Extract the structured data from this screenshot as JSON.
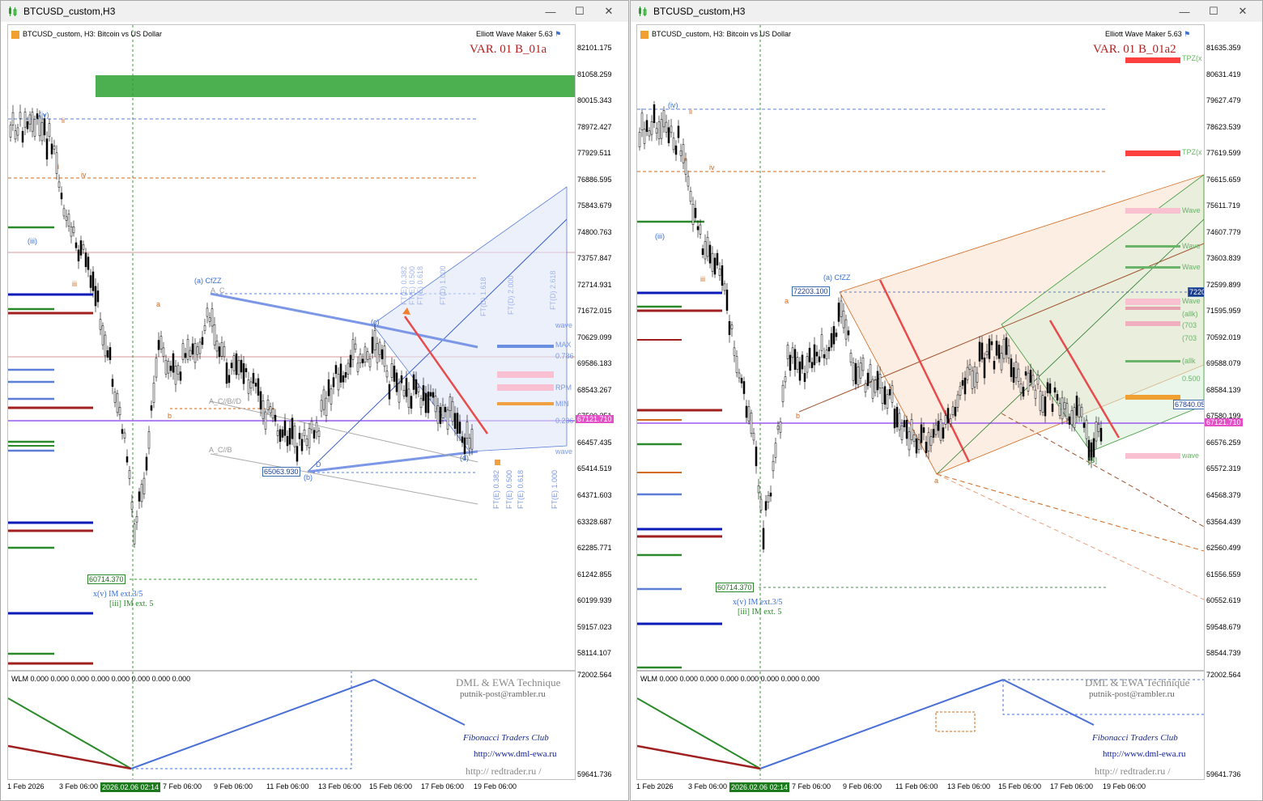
{
  "windows": [
    {
      "title": "BTCUSD_custom,H3",
      "symbol_info": "BTCUSD_custom, H3:  Bitcoin vs US Dollar",
      "indicator": "Elliott Wave Maker 5.63",
      "variant": "VAR. 01 B_01a",
      "price_scale": [
        "82101.175",
        "81058.259",
        "80015.343",
        "78972.427",
        "77929.511",
        "76886.595",
        "75843.679",
        "74800.763",
        "73757.847",
        "72714.931",
        "71672.015",
        "70629.099",
        "69586.183",
        "68543.267",
        "67500.351",
        "66457.435",
        "65414.519",
        "64371.603",
        "63328.687",
        "62285.771",
        "61242.855",
        "60199.939",
        "59157.023",
        "58114.107"
      ],
      "current_price": "67121.710",
      "low_label": "60714.370",
      "b_label": "65063.930",
      "wave_labels": {
        "cfzz": "(a) CfZZ",
        "ac": "A_C",
        "acb": "A_C//B//D",
        "acb2": "A_C//B",
        "b": "(b)",
        "c": "(c)",
        "d": "(d)",
        "iv": "(iv)",
        "iii": "(iii)",
        "ii": "ii",
        "i": "i",
        "iv2": "iv",
        "iii2": "iii",
        "a": "a",
        "b2": "b",
        "D": "D"
      },
      "notes": [
        "x(v) IM ext.3/5",
        "[iii] IM ext. 5"
      ],
      "ft_labels": [
        "FT(E) 0.382",
        "FT(E) 0.500",
        "FT(E) 0.618",
        "FT(E) 1.000"
      ],
      "fibo_top": [
        "FT(E) 0.382",
        "FT(E) 0.500",
        "FT(E) 0.618",
        "FT(D) 1.000",
        "FT(D) 1.618",
        "FT(D) 2.000",
        "FT(D) 2.618"
      ],
      "right_tags": [
        "wave",
        "MAX",
        "0.786",
        "RPM",
        "MIN",
        "0.236",
        "wave"
      ],
      "wlm": "WLM 0.000 0.000 0.000 0.000 0.000 0.000 0.000 0.000",
      "sub_scale": [
        "72002.564",
        "59641.736"
      ],
      "time_axis": [
        "1 Feb 2026",
        "3 Feb 06:00",
        "7 Feb 06:00",
        "9 Feb 06:00",
        "11 Feb 06:00",
        "13 Feb 06:00",
        "15 Feb 06:00",
        "17 Feb 06:00",
        "19 Feb 06:00"
      ],
      "time_badge": "2026.02.06 02:14"
    },
    {
      "title": "BTCUSD_custom,H3",
      "symbol_info": "BTCUSD_custom, H3:  Bitcoin vs US Dollar",
      "indicator": "Elliott Wave Maker 5.63",
      "variant": "VAR. 01 B_01a2",
      "price_scale": [
        "81635.359",
        "80631.419",
        "79627.479",
        "78623.539",
        "77619.599",
        "76615.659",
        "75611.719",
        "74607.779",
        "73603.839",
        "72599.899",
        "71595.959",
        "70592.019",
        "69588.079",
        "68584.139",
        "67580.199",
        "66576.259",
        "65572.319",
        "64568.379",
        "63564.439",
        "62560.499",
        "61556.559",
        "60552.619",
        "59548.679",
        "58544.739"
      ],
      "current_price": "67121.710",
      "low_label": "60714.370",
      "a_label": "72203.100",
      "tag_7220": "7220",
      "tag_67840": "67840.05",
      "wave_labels": {
        "cfzz": "(a) CfZZ",
        "iv": "(iv)",
        "iii": "(iii)",
        "ii": "ii",
        "i": "i",
        "iv2": "iv",
        "iii2": "iii",
        "a": "a",
        "b": "b",
        "a2": "a",
        "B": "[B]"
      },
      "notes": [
        "x(v) IM ext.3/5",
        "[iii] IM ext. 5"
      ],
      "right_tags": [
        "TPZ(x",
        "TPZ(x",
        "Wave",
        "Wave",
        "Wave",
        "Wave",
        "(allk)",
        "(703",
        "(703",
        "(allk",
        "0.500",
        "wave"
      ],
      "wlm": "WLM 0.000 0.000 0.000 0.000 0.000 0.000 0.000 0.000",
      "sub_scale": [
        "72002.564",
        "59641.736"
      ],
      "time_axis": [
        "1 Feb 2026",
        "3 Feb 06:00",
        "7 Feb 06:00",
        "9 Feb 06:00",
        "11 Feb 06:00",
        "13 Feb 06:00",
        "15 Feb 06:00",
        "17 Feb 06:00",
        "19 Feb 06:00"
      ],
      "time_badge": "2026.02.06 02:14"
    }
  ],
  "credits": {
    "line1": "DML & EWA Technique",
    "line2": "putnik-post@rambler.ru",
    "line3": "Fibonacci      Traders      Club",
    "line4": "http://www.dml-ewa.ru",
    "line5": "http:// redtrader.ru /"
  },
  "colors": {
    "up_green": "#4aa84a",
    "wave_blue": "#5b7fd6",
    "red_line": "#e84b4b",
    "price_line": "#9b59f0",
    "orange": "#d2691e"
  }
}
